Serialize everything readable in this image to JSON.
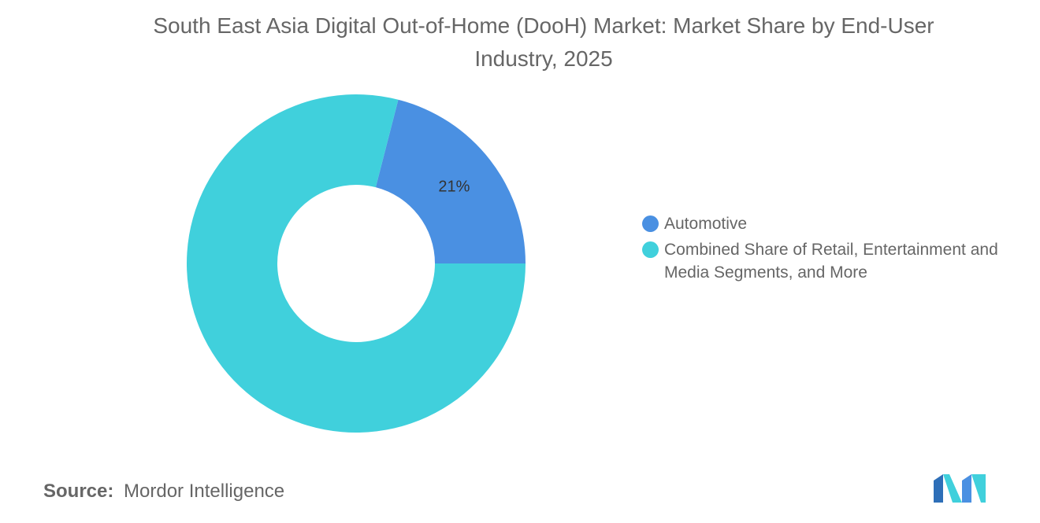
{
  "chart_data": {
    "type": "pie",
    "variant": "donut",
    "title": "South East Asia Digital Out-of-Home (DooH) Market: Market Share by End-User Industry, 2025",
    "categories": [
      "Automotive",
      "Combined Share of Retail, Entertainment and Media Segments, and More"
    ],
    "values": [
      21,
      79
    ],
    "data_labels": [
      "21%",
      ""
    ],
    "colors": [
      "#4a90e2",
      "#40d0dc"
    ],
    "legend_position": "right"
  },
  "source": {
    "label": "Source:",
    "value": "Mordor Intelligence"
  },
  "logo": {
    "icon": "mordor-intelligence-logo",
    "colors": [
      "#4a90e2",
      "#40d0dc",
      "#2e6fb8"
    ]
  }
}
